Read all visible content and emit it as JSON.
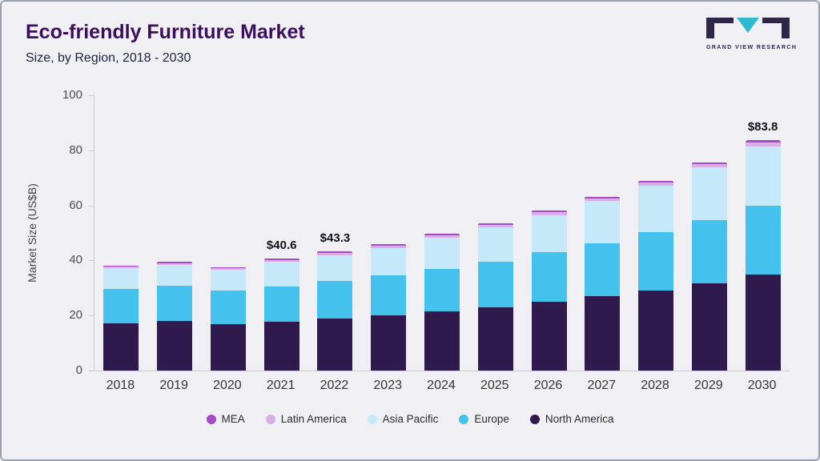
{
  "header": {
    "title": "Eco-friendly Furniture Market",
    "subtitle": "Size, by Region, 2018 - 2030"
  },
  "logo": {
    "text": "GRAND VIEW RESEARCH"
  },
  "chart_data": {
    "type": "bar",
    "stacked": true,
    "title": "Eco-friendly Furniture Market",
    "subtitle": "Size, by Region, 2018 - 2030",
    "xlabel": "",
    "ylabel": "Market Size (US$B)",
    "ylim": [
      0,
      100
    ],
    "yticks": [
      0,
      20,
      40,
      60,
      80,
      100
    ],
    "grid": false,
    "legend_position": "bottom",
    "categories": [
      "2018",
      "2019",
      "2020",
      "2021",
      "2022",
      "2023",
      "2024",
      "2025",
      "2026",
      "2027",
      "2028",
      "2029",
      "2030"
    ],
    "series": [
      {
        "name": "North America",
        "color": "#2f1a4d",
        "values": [
          17.2,
          18.0,
          17.0,
          17.8,
          19.0,
          20.2,
          21.6,
          23.1,
          24.9,
          26.9,
          29.2,
          31.8,
          34.8
        ]
      },
      {
        "name": "Europe",
        "color": "#45c1ee",
        "values": [
          12.4,
          12.8,
          12.1,
          12.8,
          13.5,
          14.4,
          15.4,
          16.5,
          18.0,
          19.4,
          21.2,
          22.9,
          25.2
        ]
      },
      {
        "name": "Asia Pacific",
        "color": "#c6e9fa",
        "values": [
          7.5,
          7.7,
          7.5,
          8.8,
          9.5,
          9.9,
          11.3,
          12.5,
          13.6,
          15.2,
          16.8,
          19.0,
          21.5
        ]
      },
      {
        "name": "Latin America",
        "color": "#d9aee6",
        "values": [
          0.6,
          0.6,
          0.6,
          0.7,
          0.8,
          0.8,
          0.8,
          0.9,
          1.0,
          1.0,
          1.1,
          1.2,
          1.4
        ]
      },
      {
        "name": "MEA",
        "color": "#a44bc8",
        "values": [
          0.4,
          0.4,
          0.4,
          0.5,
          0.5,
          0.5,
          0.5,
          0.6,
          0.6,
          0.7,
          0.7,
          0.8,
          0.9
        ]
      }
    ],
    "value_labels": [
      {
        "category": "2021",
        "text": "$40.6"
      },
      {
        "category": "2022",
        "text": "$43.3"
      },
      {
        "category": "2030",
        "text": "$83.8"
      }
    ],
    "legend": [
      "MEA",
      "Latin America",
      "Asia Pacific",
      "Europe",
      "North America"
    ]
  }
}
